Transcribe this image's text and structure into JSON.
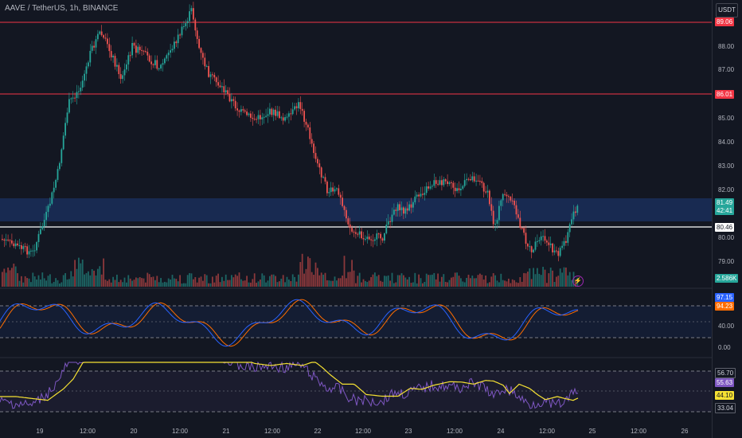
{
  "header": {
    "symbol": "AAVE / TetherUS, 1h, BINANCE",
    "currency_button": "USDT"
  },
  "price_axis": [
    "88.00",
    "87.00",
    "85.00",
    "84.00",
    "83.00",
    "82.00",
    "80.00",
    "79.00"
  ],
  "price_tags": {
    "upper_line": "89.06",
    "mid_line": "86.01",
    "current_price": "81.49",
    "countdown": "42:41",
    "support_line": "80.46",
    "volume": "2.586K"
  },
  "stoch_panel": {
    "axis": [
      "40.00",
      "0.00"
    ],
    "k_value": "97.15",
    "d_value": "94.23"
  },
  "rsi_panel": {
    "upper_band": "56.70",
    "rsi_value": "55.63",
    "ma_value": "44.10",
    "lower_band": "33.04"
  },
  "time_axis": [
    "19",
    "12:00",
    "20",
    "12:00",
    "21",
    "12:00",
    "22",
    "12:00",
    "23",
    "12:00",
    "24",
    "12:00",
    "25",
    "12:00",
    "26"
  ],
  "colors": {
    "bull": "#26a69a",
    "bear": "#ef5350",
    "zone": "#1e3a78",
    "stoch_k": "#2962ff",
    "stoch_d": "#ff6d00",
    "rsi": "#7e57c2",
    "rsi_ma": "#f5e133",
    "h_line": "#f23645"
  }
}
